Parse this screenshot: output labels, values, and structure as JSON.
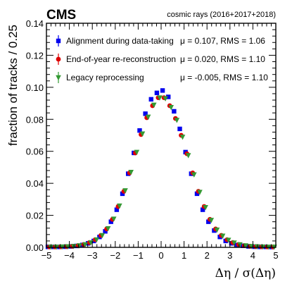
{
  "chart_data": {
    "type": "scatter",
    "experiment_label": "CMS",
    "dataset_label": "cosmic rays (2016+2017+2018)",
    "xlabel": "Δη / σ(Δη)",
    "ylabel": "fraction of tracks / 0.25",
    "xlim": [
      -5,
      5
    ],
    "ylim": [
      0,
      0.14
    ],
    "x_ticks": [
      -5,
      -4,
      -3,
      -2,
      -1,
      0,
      1,
      2,
      3,
      4,
      5
    ],
    "y_ticks": [
      0,
      0.02,
      0.04,
      0.06,
      0.08,
      0.1,
      0.12,
      0.14
    ],
    "y_tick_labels": [
      "0.00",
      "0.02",
      "0.04",
      "0.06",
      "0.08",
      "0.10",
      "0.12",
      "0.14"
    ],
    "legend_placement": "top",
    "x": [
      -4.875,
      -4.625,
      -4.375,
      -4.125,
      -3.875,
      -3.625,
      -3.375,
      -3.125,
      -2.875,
      -2.625,
      -2.375,
      -2.125,
      -1.875,
      -1.625,
      -1.375,
      -1.125,
      -0.875,
      -0.625,
      -0.375,
      -0.125,
      0.125,
      0.375,
      0.625,
      0.875,
      1.125,
      1.375,
      1.625,
      1.875,
      2.125,
      2.375,
      2.625,
      2.875,
      3.125,
      3.375,
      3.625,
      3.875,
      4.125,
      4.375,
      4.625,
      4.875
    ],
    "series": [
      {
        "name": "Alignment during data-taking",
        "stats": "μ = 0.107, RMS = 1.06",
        "color": "#0000ee",
        "marker": "square",
        "values": [
          0.0003,
          0.0003,
          0.0003,
          0.0004,
          0.0006,
          0.0009,
          0.0015,
          0.0025,
          0.004,
          0.0065,
          0.01,
          0.016,
          0.0235,
          0.0335,
          0.046,
          0.059,
          0.073,
          0.0835,
          0.0925,
          0.0965,
          0.098,
          0.094,
          0.085,
          0.074,
          0.0595,
          0.046,
          0.0335,
          0.0235,
          0.016,
          0.0105,
          0.0065,
          0.004,
          0.0025,
          0.0015,
          0.001,
          0.0006,
          0.0004,
          0.0003,
          0.0003,
          0.0002
        ]
      },
      {
        "name": "End-of-year re-reconstruction",
        "stats": "μ = 0.020, RMS = 1.10",
        "color": "#dd0000",
        "marker": "circle",
        "values": [
          0.0003,
          0.0003,
          0.0004,
          0.0005,
          0.0007,
          0.0011,
          0.0018,
          0.003,
          0.0048,
          0.0075,
          0.0115,
          0.0175,
          0.0255,
          0.035,
          0.0465,
          0.059,
          0.0705,
          0.081,
          0.0885,
          0.0935,
          0.0935,
          0.0885,
          0.0805,
          0.07,
          0.0585,
          0.0465,
          0.035,
          0.0255,
          0.0175,
          0.0115,
          0.0075,
          0.0048,
          0.003,
          0.0018,
          0.0011,
          0.0007,
          0.0005,
          0.0004,
          0.0003,
          0.0003
        ]
      },
      {
        "name": "Legacy reprocessing",
        "stats": "μ = -0.005, RMS = 1.10",
        "color": "#339933",
        "marker": "triangle-down",
        "values": [
          0.0003,
          0.0003,
          0.0004,
          0.0005,
          0.0007,
          0.0011,
          0.0018,
          0.003,
          0.0048,
          0.0075,
          0.0118,
          0.0178,
          0.026,
          0.0355,
          0.047,
          0.0595,
          0.071,
          0.0815,
          0.089,
          0.0935,
          0.093,
          0.0875,
          0.0795,
          0.069,
          0.0575,
          0.0455,
          0.0345,
          0.025,
          0.017,
          0.011,
          0.0072,
          0.0046,
          0.0029,
          0.0018,
          0.0011,
          0.0007,
          0.0005,
          0.0004,
          0.0003,
          0.0003
        ]
      }
    ]
  }
}
